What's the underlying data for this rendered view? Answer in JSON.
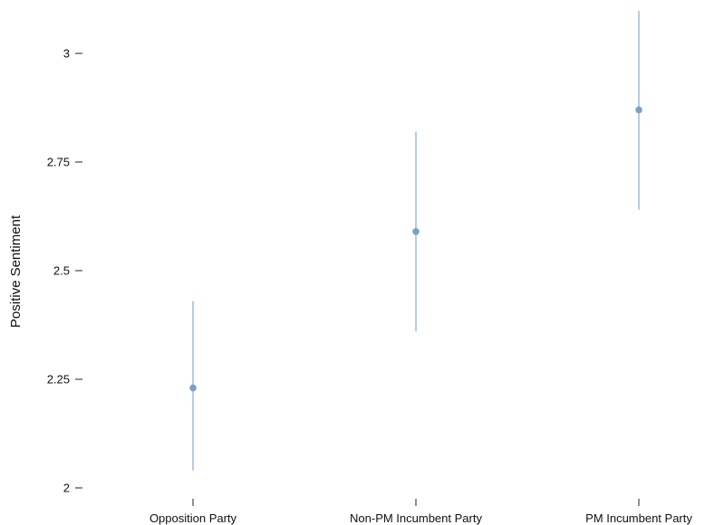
{
  "chart_data": {
    "type": "scatter",
    "title": "",
    "xlabel": "",
    "ylabel": "Positive Sentiment",
    "categories": [
      "Opposition Party",
      "Non-PM Incumbent Party",
      "PM Incumbent Party"
    ],
    "series": [
      {
        "values": [
          2.23,
          2.59,
          2.87
        ],
        "lower": [
          2.04,
          2.36,
          2.64
        ],
        "upper": [
          2.43,
          2.82,
          3.1
        ]
      }
    ],
    "yticks": [
      2,
      2.25,
      2.5,
      2.75,
      3
    ],
    "ytick_labels": [
      "2",
      "2.25",
      "2.5",
      "2.75",
      "3"
    ],
    "ylim": [
      2,
      3.1
    ],
    "grid": false,
    "legend": "none",
    "colors": {
      "point": "#7f9fc9",
      "errorbar": "#8fb0d8",
      "axis": "#222222"
    }
  }
}
